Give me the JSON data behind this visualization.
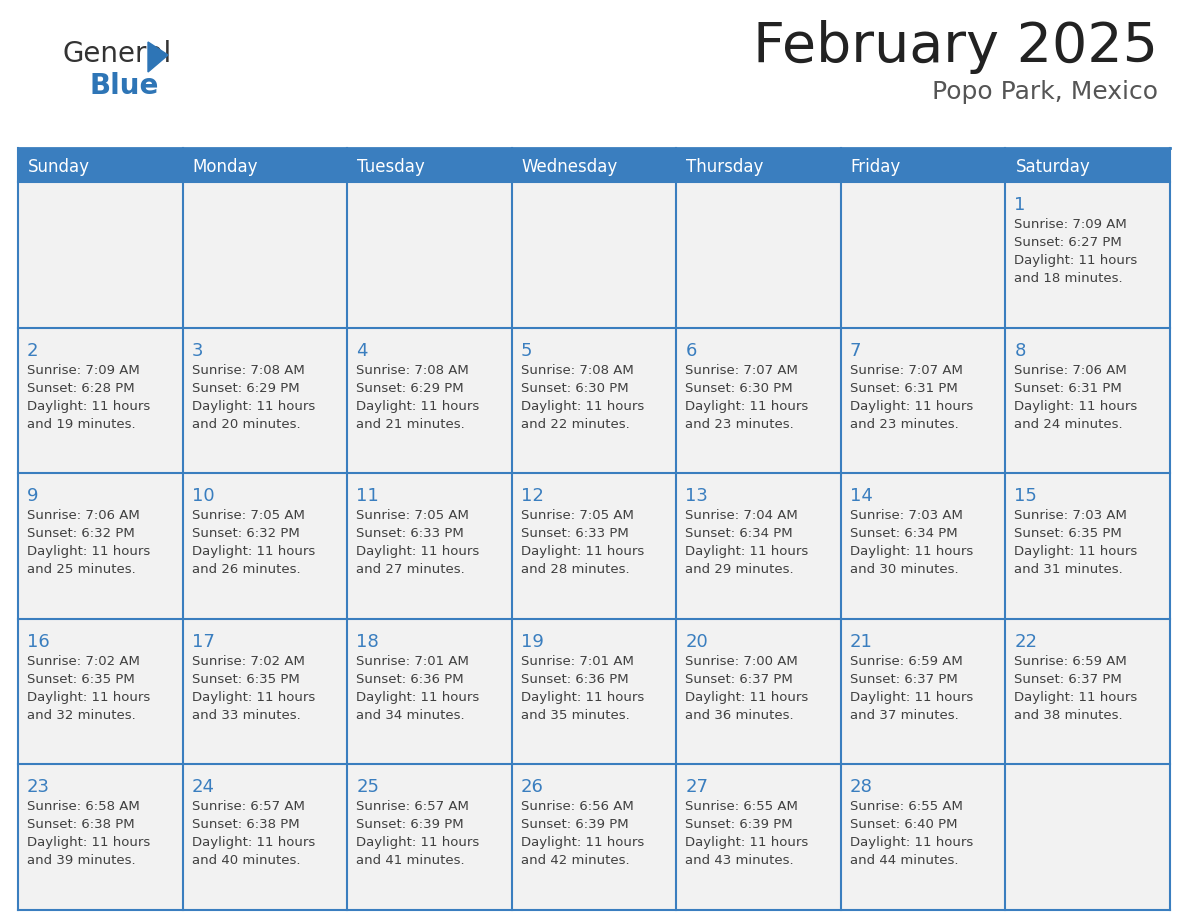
{
  "title": "February 2025",
  "subtitle": "Popo Park, Mexico",
  "header_bg": "#3A7EBF",
  "header_text_color": "#FFFFFF",
  "cell_border_color": "#3A7EBF",
  "day_number_color": "#3A7EBF",
  "detail_text_color": "#404040",
  "background_color": "#FFFFFF",
  "cell_bg": "#F2F2F2",
  "days_of_week": [
    "Sunday",
    "Monday",
    "Tuesday",
    "Wednesday",
    "Thursday",
    "Friday",
    "Saturday"
  ],
  "calendar_data": [
    [
      null,
      null,
      null,
      null,
      null,
      null,
      {
        "day": "1",
        "sunrise": "7:09 AM",
        "sunset": "6:27 PM",
        "daylight_line1": "Daylight: 11 hours",
        "daylight_line2": "and 18 minutes."
      }
    ],
    [
      {
        "day": "2",
        "sunrise": "7:09 AM",
        "sunset": "6:28 PM",
        "daylight_line1": "Daylight: 11 hours",
        "daylight_line2": "and 19 minutes."
      },
      {
        "day": "3",
        "sunrise": "7:08 AM",
        "sunset": "6:29 PM",
        "daylight_line1": "Daylight: 11 hours",
        "daylight_line2": "and 20 minutes."
      },
      {
        "day": "4",
        "sunrise": "7:08 AM",
        "sunset": "6:29 PM",
        "daylight_line1": "Daylight: 11 hours",
        "daylight_line2": "and 21 minutes."
      },
      {
        "day": "5",
        "sunrise": "7:08 AM",
        "sunset": "6:30 PM",
        "daylight_line1": "Daylight: 11 hours",
        "daylight_line2": "and 22 minutes."
      },
      {
        "day": "6",
        "sunrise": "7:07 AM",
        "sunset": "6:30 PM",
        "daylight_line1": "Daylight: 11 hours",
        "daylight_line2": "and 23 minutes."
      },
      {
        "day": "7",
        "sunrise": "7:07 AM",
        "sunset": "6:31 PM",
        "daylight_line1": "Daylight: 11 hours",
        "daylight_line2": "and 23 minutes."
      },
      {
        "day": "8",
        "sunrise": "7:06 AM",
        "sunset": "6:31 PM",
        "daylight_line1": "Daylight: 11 hours",
        "daylight_line2": "and 24 minutes."
      }
    ],
    [
      {
        "day": "9",
        "sunrise": "7:06 AM",
        "sunset": "6:32 PM",
        "daylight_line1": "Daylight: 11 hours",
        "daylight_line2": "and 25 minutes."
      },
      {
        "day": "10",
        "sunrise": "7:05 AM",
        "sunset": "6:32 PM",
        "daylight_line1": "Daylight: 11 hours",
        "daylight_line2": "and 26 minutes."
      },
      {
        "day": "11",
        "sunrise": "7:05 AM",
        "sunset": "6:33 PM",
        "daylight_line1": "Daylight: 11 hours",
        "daylight_line2": "and 27 minutes."
      },
      {
        "day": "12",
        "sunrise": "7:05 AM",
        "sunset": "6:33 PM",
        "daylight_line1": "Daylight: 11 hours",
        "daylight_line2": "and 28 minutes."
      },
      {
        "day": "13",
        "sunrise": "7:04 AM",
        "sunset": "6:34 PM",
        "daylight_line1": "Daylight: 11 hours",
        "daylight_line2": "and 29 minutes."
      },
      {
        "day": "14",
        "sunrise": "7:03 AM",
        "sunset": "6:34 PM",
        "daylight_line1": "Daylight: 11 hours",
        "daylight_line2": "and 30 minutes."
      },
      {
        "day": "15",
        "sunrise": "7:03 AM",
        "sunset": "6:35 PM",
        "daylight_line1": "Daylight: 11 hours",
        "daylight_line2": "and 31 minutes."
      }
    ],
    [
      {
        "day": "16",
        "sunrise": "7:02 AM",
        "sunset": "6:35 PM",
        "daylight_line1": "Daylight: 11 hours",
        "daylight_line2": "and 32 minutes."
      },
      {
        "day": "17",
        "sunrise": "7:02 AM",
        "sunset": "6:35 PM",
        "daylight_line1": "Daylight: 11 hours",
        "daylight_line2": "and 33 minutes."
      },
      {
        "day": "18",
        "sunrise": "7:01 AM",
        "sunset": "6:36 PM",
        "daylight_line1": "Daylight: 11 hours",
        "daylight_line2": "and 34 minutes."
      },
      {
        "day": "19",
        "sunrise": "7:01 AM",
        "sunset": "6:36 PM",
        "daylight_line1": "Daylight: 11 hours",
        "daylight_line2": "and 35 minutes."
      },
      {
        "day": "20",
        "sunrise": "7:00 AM",
        "sunset": "6:37 PM",
        "daylight_line1": "Daylight: 11 hours",
        "daylight_line2": "and 36 minutes."
      },
      {
        "day": "21",
        "sunrise": "6:59 AM",
        "sunset": "6:37 PM",
        "daylight_line1": "Daylight: 11 hours",
        "daylight_line2": "and 37 minutes."
      },
      {
        "day": "22",
        "sunrise": "6:59 AM",
        "sunset": "6:37 PM",
        "daylight_line1": "Daylight: 11 hours",
        "daylight_line2": "and 38 minutes."
      }
    ],
    [
      {
        "day": "23",
        "sunrise": "6:58 AM",
        "sunset": "6:38 PM",
        "daylight_line1": "Daylight: 11 hours",
        "daylight_line2": "and 39 minutes."
      },
      {
        "day": "24",
        "sunrise": "6:57 AM",
        "sunset": "6:38 PM",
        "daylight_line1": "Daylight: 11 hours",
        "daylight_line2": "and 40 minutes."
      },
      {
        "day": "25",
        "sunrise": "6:57 AM",
        "sunset": "6:39 PM",
        "daylight_line1": "Daylight: 11 hours",
        "daylight_line2": "and 41 minutes."
      },
      {
        "day": "26",
        "sunrise": "6:56 AM",
        "sunset": "6:39 PM",
        "daylight_line1": "Daylight: 11 hours",
        "daylight_line2": "and 42 minutes."
      },
      {
        "day": "27",
        "sunrise": "6:55 AM",
        "sunset": "6:39 PM",
        "daylight_line1": "Daylight: 11 hours",
        "daylight_line2": "and 43 minutes."
      },
      {
        "day": "28",
        "sunrise": "6:55 AM",
        "sunset": "6:40 PM",
        "daylight_line1": "Daylight: 11 hours",
        "daylight_line2": "and 44 minutes."
      },
      null
    ]
  ]
}
